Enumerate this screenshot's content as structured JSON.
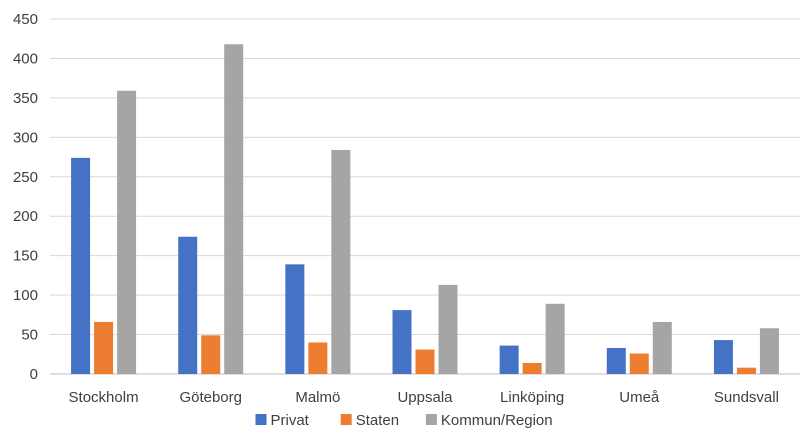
{
  "chart_data": {
    "type": "bar",
    "categories": [
      "Stockholm",
      "Göteborg",
      "Malmö",
      "Uppsala",
      "Linköping",
      "Umeå",
      "Sundsvall"
    ],
    "series": [
      {
        "name": "Privat",
        "color": "#4472c4",
        "values": [
          274,
          174,
          139,
          81,
          36,
          33,
          43
        ]
      },
      {
        "name": "Staten",
        "color": "#ed7d31",
        "values": [
          66,
          49,
          40,
          31,
          14,
          26,
          8
        ]
      },
      {
        "name": "Kommun/Region",
        "color": "#a5a5a5",
        "values": [
          359,
          418,
          284,
          113,
          89,
          66,
          58
        ]
      }
    ],
    "yticks": [
      "0",
      "50",
      "100",
      "150",
      "200",
      "250",
      "300",
      "350",
      "400",
      "450"
    ],
    "ylim": [
      0,
      450
    ],
    "grid": true,
    "legend_position": "bottom-center"
  }
}
